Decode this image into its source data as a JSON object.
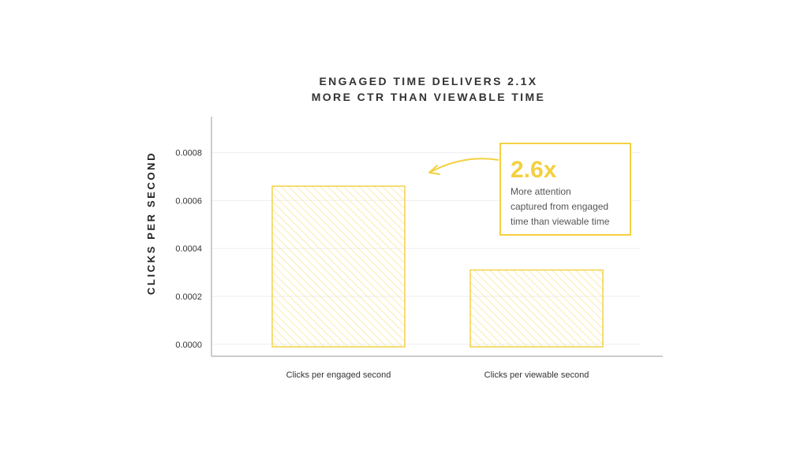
{
  "chart_data": {
    "type": "bar",
    "title_lines": [
      "ENGAGED TIME DELIVERS 2.1X",
      "MORE CTR THAN VIEWABLE TIME"
    ],
    "ylabel": "CLICKS PER SECOND",
    "xlabel": "",
    "categories": [
      "Clicks per engaged second",
      "Clicks per viewable second"
    ],
    "values": [
      0.00066,
      0.00031
    ],
    "ylim": [
      -5e-05,
      0.00095
    ],
    "y_ticks": [
      0.0,
      0.0002,
      0.0004,
      0.0006,
      0.0008
    ],
    "y_tick_labels": [
      "0.0000",
      "0.0002",
      "0.0004",
      "0.0006",
      "0.0008"
    ],
    "grid": true,
    "legend": "none",
    "bar_fill": "hatched",
    "annotation": {
      "headline": "2.6x",
      "lines": [
        "More attention",
        "captured from engaged",
        "time than viewable time"
      ],
      "points_to": "Clicks per engaged second"
    }
  },
  "colors": {
    "accent": "#f4d03f",
    "bar_stroke": "#f3d24a",
    "hatch": "#f8e48a",
    "grid": "#eeeeee",
    "axis": "#9a9a9a",
    "text": "#333333"
  }
}
